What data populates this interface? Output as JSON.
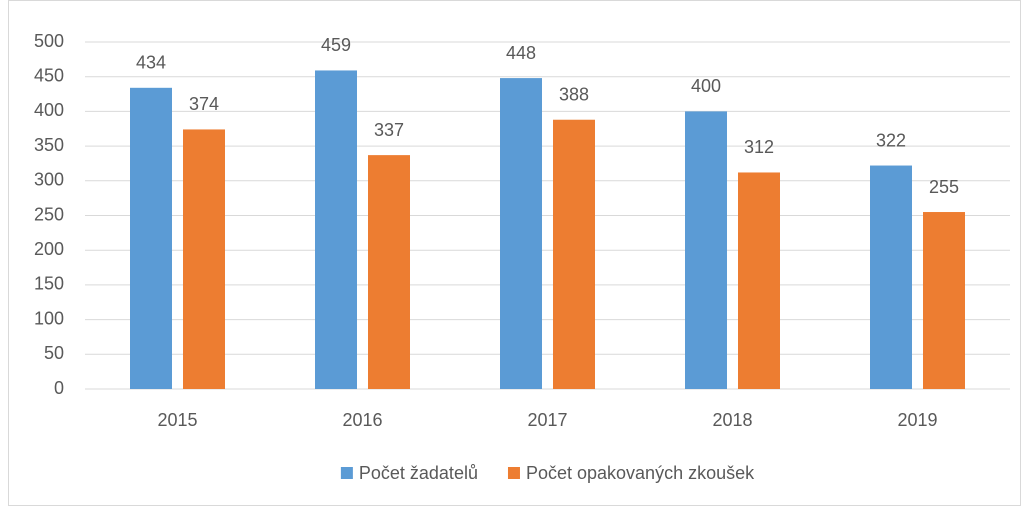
{
  "chart_data": {
    "type": "bar",
    "categories": [
      "2015",
      "2016",
      "2017",
      "2018",
      "2019"
    ],
    "series": [
      {
        "name": "Počet žadatelů",
        "color": "#5b9bd5",
        "values": [
          434,
          459,
          448,
          400,
          322
        ]
      },
      {
        "name": "Počet opakovaných zkoušek",
        "color": "#ed7d31",
        "values": [
          374,
          337,
          388,
          312,
          255
        ]
      }
    ],
    "ylim": [
      0,
      500
    ],
    "yticks": [
      0,
      50,
      100,
      150,
      200,
      250,
      300,
      350,
      400,
      450,
      500
    ],
    "grid": true,
    "legend": "bottom"
  }
}
